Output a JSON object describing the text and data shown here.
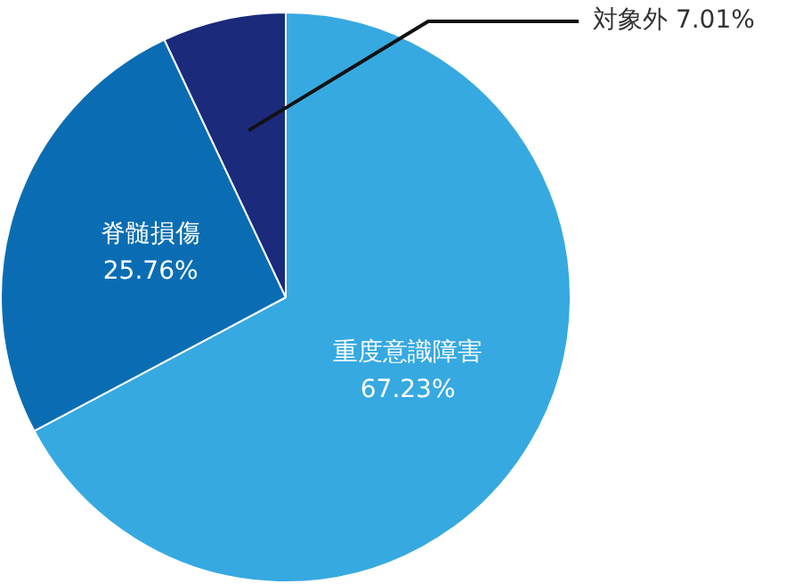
{
  "chart_data": {
    "type": "pie",
    "categories": [
      "重度意識障害",
      "脊髄損傷",
      "対象外"
    ],
    "values": [
      67.23,
      25.76,
      7.01
    ],
    "colors": [
      "#36a9e1",
      "#0a6db3",
      "#1b2a7b"
    ],
    "value_labels": [
      "67.23%",
      "25.76%",
      "7.01%"
    ],
    "legend": false
  }
}
